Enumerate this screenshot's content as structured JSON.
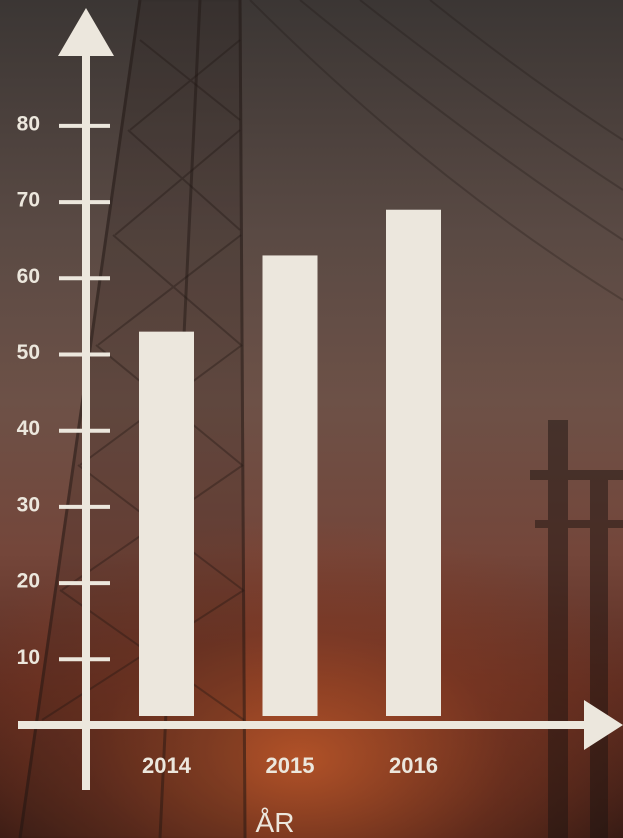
{
  "chart_data": {
    "type": "bar",
    "title": "",
    "xlabel": "ÅR",
    "ylabel": "",
    "categories": [
      "2014",
      "2015",
      "2016"
    ],
    "values": [
      53,
      63,
      69
    ],
    "yticks": [
      10,
      20,
      30,
      40,
      50,
      60,
      70,
      80
    ],
    "ylim": [
      0,
      80
    ],
    "grid": false,
    "legend": "none",
    "colors": {
      "bars": "#ece7dd",
      "axes": "#ece7dd",
      "text": "#ece7dd"
    }
  }
}
